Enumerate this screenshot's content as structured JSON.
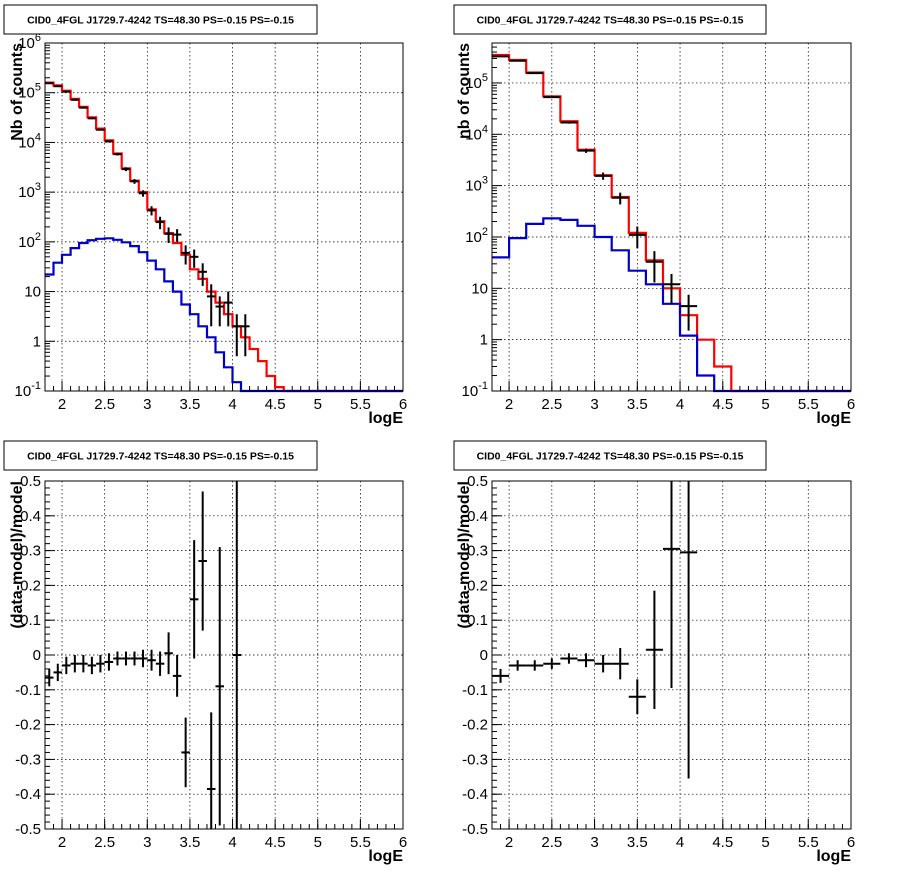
{
  "colors": {
    "data": "#000000",
    "total_model": "#ff0000",
    "component_model": "#0000cc"
  },
  "chart_data": [
    {
      "type": "line",
      "panel": "top-left",
      "title": "CID0_4FGL J1729.7-4242 TS=48.30 PS=-0.15 PS=-0.15",
      "xlabel": "logE",
      "ylabel": "Nb of counts",
      "xlim": [
        1.8,
        6.0
      ],
      "ylim": [
        0.1,
        1000000
      ],
      "yscale": "log",
      "grid": true,
      "xticks": [
        "2",
        "2.5",
        "3",
        "3.5",
        "4",
        "4.5",
        "5",
        "5.5",
        "6"
      ],
      "yticks": [
        "10^-1",
        "1",
        "10",
        "10^2",
        "10^3",
        "10^4",
        "10^5",
        "10^6"
      ],
      "series": [
        {
          "kind": "step",
          "color": "#ff0000",
          "bin_edges": [
            1.8,
            1.9,
            2.0,
            2.1,
            2.2,
            2.3,
            2.4,
            2.5,
            2.6,
            2.7,
            2.8,
            2.9,
            3.0,
            3.1,
            3.2,
            3.3,
            3.4,
            3.5,
            3.6,
            3.7,
            3.8,
            3.9,
            4.0,
            4.1,
            4.2,
            4.3,
            4.4,
            4.5,
            4.6,
            4.7,
            4.8,
            4.9,
            5.0,
            5.1,
            5.2,
            5.3,
            5.4,
            5.5,
            5.6,
            5.7,
            5.8,
            5.9,
            6.0
          ],
          "values": [
            160000,
            140000,
            110000,
            75000,
            52000,
            32000,
            19000,
            11000,
            6000,
            3000,
            1700,
            1000,
            450,
            260,
            150,
            95,
            55,
            28,
            18,
            10,
            6,
            3.5,
            2,
            1.2,
            0.7,
            0.4,
            0.2,
            0.12,
            0.1,
            0.1,
            0.1,
            0.1,
            0.1,
            0.1,
            0.1,
            0.1,
            0.1,
            0.1,
            0.1,
            0.1,
            0.1,
            0.1
          ]
        },
        {
          "kind": "step",
          "color": "#0000cc",
          "bin_edges": [
            1.8,
            1.9,
            2.0,
            2.1,
            2.2,
            2.3,
            2.4,
            2.5,
            2.6,
            2.7,
            2.8,
            2.9,
            3.0,
            3.1,
            3.2,
            3.3,
            3.4,
            3.5,
            3.6,
            3.7,
            3.8,
            3.9,
            4.0,
            4.1,
            4.2,
            4.3,
            4.4,
            4.5,
            4.6,
            4.7,
            4.8,
            4.9,
            5.0,
            5.1,
            5.2,
            5.3,
            5.4,
            5.5,
            5.6,
            5.7,
            5.8,
            5.9,
            6.0
          ],
          "values": [
            22,
            38,
            55,
            75,
            95,
            108,
            115,
            118,
            110,
            98,
            82,
            62,
            42,
            28,
            16,
            10,
            5.5,
            3.5,
            2,
            1.2,
            0.6,
            0.3,
            0.15,
            0.1,
            0.1,
            0.1,
            0.1,
            0.1,
            0.1,
            0.1,
            0.1,
            0.1,
            0.1,
            0.1,
            0.1,
            0.1,
            0.1,
            0.1,
            0.1,
            0.1,
            0.1,
            0.1
          ]
        },
        {
          "kind": "points",
          "color": "#000000",
          "x": [
            1.85,
            1.95,
            2.05,
            2.15,
            2.25,
            2.35,
            2.45,
            2.55,
            2.65,
            2.75,
            2.85,
            2.95,
            3.05,
            3.15,
            3.25,
            3.35,
            3.45,
            3.55,
            3.65,
            3.75,
            3.85,
            3.95,
            4.05,
            4.15
          ],
          "y": [
            155000,
            135000,
            105000,
            72000,
            50000,
            30500,
            18000,
            10500,
            5800,
            2900,
            1650,
            950,
            430,
            250,
            145,
            140,
            60,
            50,
            25,
            8,
            5,
            6,
            2,
            2
          ],
          "xerr": 0.05,
          "yerr": [
            2000,
            2000,
            1500,
            1200,
            1000,
            800,
            600,
            450,
            350,
            250,
            180,
            140,
            90,
            70,
            50,
            40,
            25,
            20,
            12,
            6,
            3,
            4,
            1.5,
            1.5
          ]
        }
      ]
    },
    {
      "type": "line",
      "panel": "top-right",
      "title": "CID0_4FGL J1729.7-4242 TS=48.30 PS=-0.15 PS=-0.15",
      "xlabel": "logE",
      "ylabel": "nb of counts",
      "xlim": [
        1.8,
        6.0
      ],
      "ylim": [
        0.1,
        600000
      ],
      "yscale": "log",
      "grid": true,
      "xticks": [
        "2",
        "2.5",
        "3",
        "3.5",
        "4",
        "4.5",
        "5",
        "5.5",
        "6"
      ],
      "yticks": [
        "10^-1",
        "1",
        "10",
        "10^2",
        "10^3",
        "10^4",
        "10^5"
      ],
      "series": [
        {
          "kind": "step",
          "color": "#ff0000",
          "bin_edges": [
            1.8,
            2.0,
            2.2,
            2.4,
            2.6,
            2.8,
            3.0,
            3.2,
            3.4,
            3.6,
            3.8,
            4.0,
            4.2,
            4.4,
            4.6,
            4.8,
            5.0,
            5.2,
            5.4,
            5.6,
            5.8,
            6.0
          ],
          "values": [
            350000,
            280000,
            160000,
            55000,
            18000,
            5000,
            1600,
            600,
            120,
            35,
            10,
            3,
            1,
            0.3,
            0.1,
            0.1,
            0.1,
            0.1,
            0.1,
            0.1,
            0.1
          ]
        },
        {
          "kind": "step",
          "color": "#0000cc",
          "bin_edges": [
            1.8,
            2.0,
            2.2,
            2.4,
            2.6,
            2.8,
            3.0,
            3.2,
            3.4,
            3.6,
            3.8,
            4.0,
            4.2,
            4.4,
            4.6,
            4.8,
            5.0,
            5.2,
            5.4,
            5.6,
            5.8,
            6.0
          ],
          "values": [
            40,
            95,
            180,
            230,
            215,
            165,
            100,
            55,
            22,
            12,
            5,
            1.2,
            0.2,
            0.1,
            0.1,
            0.1,
            0.1,
            0.1,
            0.1,
            0.1,
            0.1
          ]
        },
        {
          "kind": "points",
          "color": "#000000",
          "x": [
            1.9,
            2.1,
            2.3,
            2.5,
            2.7,
            2.9,
            3.1,
            3.3,
            3.5,
            3.7,
            3.9,
            4.1
          ],
          "y": [
            330000,
            270000,
            155000,
            53000,
            17000,
            4800,
            1550,
            580,
            110,
            33,
            12,
            4.5
          ],
          "xerr": 0.1,
          "yerr": [
            5000,
            4000,
            3000,
            1800,
            900,
            450,
            250,
            150,
            50,
            20,
            7,
            3
          ]
        }
      ]
    },
    {
      "type": "scatter",
      "panel": "bottom-left",
      "title": "CID0_4FGL J1729.7-4242 TS=48.30 PS=-0.15 PS=-0.15",
      "xlabel": "logE",
      "ylabel": "(data-model)/model",
      "xlim": [
        1.8,
        6.0
      ],
      "ylim": [
        -0.5,
        0.5
      ],
      "grid": true,
      "xticks": [
        "2",
        "2.5",
        "3",
        "3.5",
        "4",
        "4.5",
        "5",
        "5.5",
        "6"
      ],
      "yticks": [
        "-0.5",
        "-0.4",
        "-0.3",
        "-0.2",
        "-0.1",
        "0",
        "0.1",
        "0.2",
        "0.3",
        "0.4",
        "0.5"
      ],
      "series": [
        {
          "kind": "points",
          "color": "#000000",
          "x": [
            1.85,
            1.95,
            2.05,
            2.15,
            2.25,
            2.35,
            2.45,
            2.55,
            2.65,
            2.75,
            2.85,
            2.95,
            3.05,
            3.15,
            3.25,
            3.35,
            3.45,
            3.55,
            3.65,
            3.75,
            3.85,
            4.05
          ],
          "y": [
            -0.065,
            -0.05,
            -0.03,
            -0.025,
            -0.025,
            -0.03,
            -0.025,
            -0.02,
            -0.01,
            -0.01,
            -0.01,
            -0.01,
            -0.015,
            -0.025,
            0.005,
            -0.06,
            -0.28,
            0.16,
            0.27,
            -0.385,
            -0.09,
            0.0
          ],
          "xerr": 0.05,
          "yerr": [
            0.025,
            0.025,
            0.025,
            0.025,
            0.025,
            0.025,
            0.025,
            0.025,
            0.02,
            0.02,
            0.02,
            0.025,
            0.03,
            0.035,
            0.06,
            0.06,
            0.1,
            0.17,
            0.2,
            0.22,
            0.4,
            0.55
          ]
        }
      ]
    },
    {
      "type": "scatter",
      "panel": "bottom-right",
      "title": "CID0_4FGL J1729.7-4242 TS=48.30 PS=-0.15 PS=-0.15",
      "xlabel": "logE",
      "ylabel": "(data-model)/model",
      "xlim": [
        1.8,
        6.0
      ],
      "ylim": [
        -0.5,
        0.5
      ],
      "grid": true,
      "xticks": [
        "2",
        "2.5",
        "3",
        "3.5",
        "4",
        "4.5",
        "5",
        "5.5",
        "6"
      ],
      "yticks": [
        "-0.5",
        "-0.4",
        "-0.3",
        "-0.2",
        "-0.1",
        "0",
        "0.1",
        "0.2",
        "0.3",
        "0.4",
        "0.5"
      ],
      "series": [
        {
          "kind": "points",
          "color": "#000000",
          "x": [
            1.9,
            2.1,
            2.3,
            2.5,
            2.7,
            2.9,
            3.1,
            3.3,
            3.5,
            3.7,
            3.9,
            4.1
          ],
          "y": [
            -0.06,
            -0.03,
            -0.03,
            -0.025,
            -0.01,
            -0.015,
            -0.025,
            -0.025,
            -0.12,
            0.015,
            0.305,
            0.295
          ],
          "xerr": 0.1,
          "yerr": [
            0.02,
            0.015,
            0.015,
            0.015,
            0.015,
            0.02,
            0.025,
            0.045,
            0.05,
            0.17,
            0.4,
            0.65
          ]
        }
      ]
    }
  ]
}
